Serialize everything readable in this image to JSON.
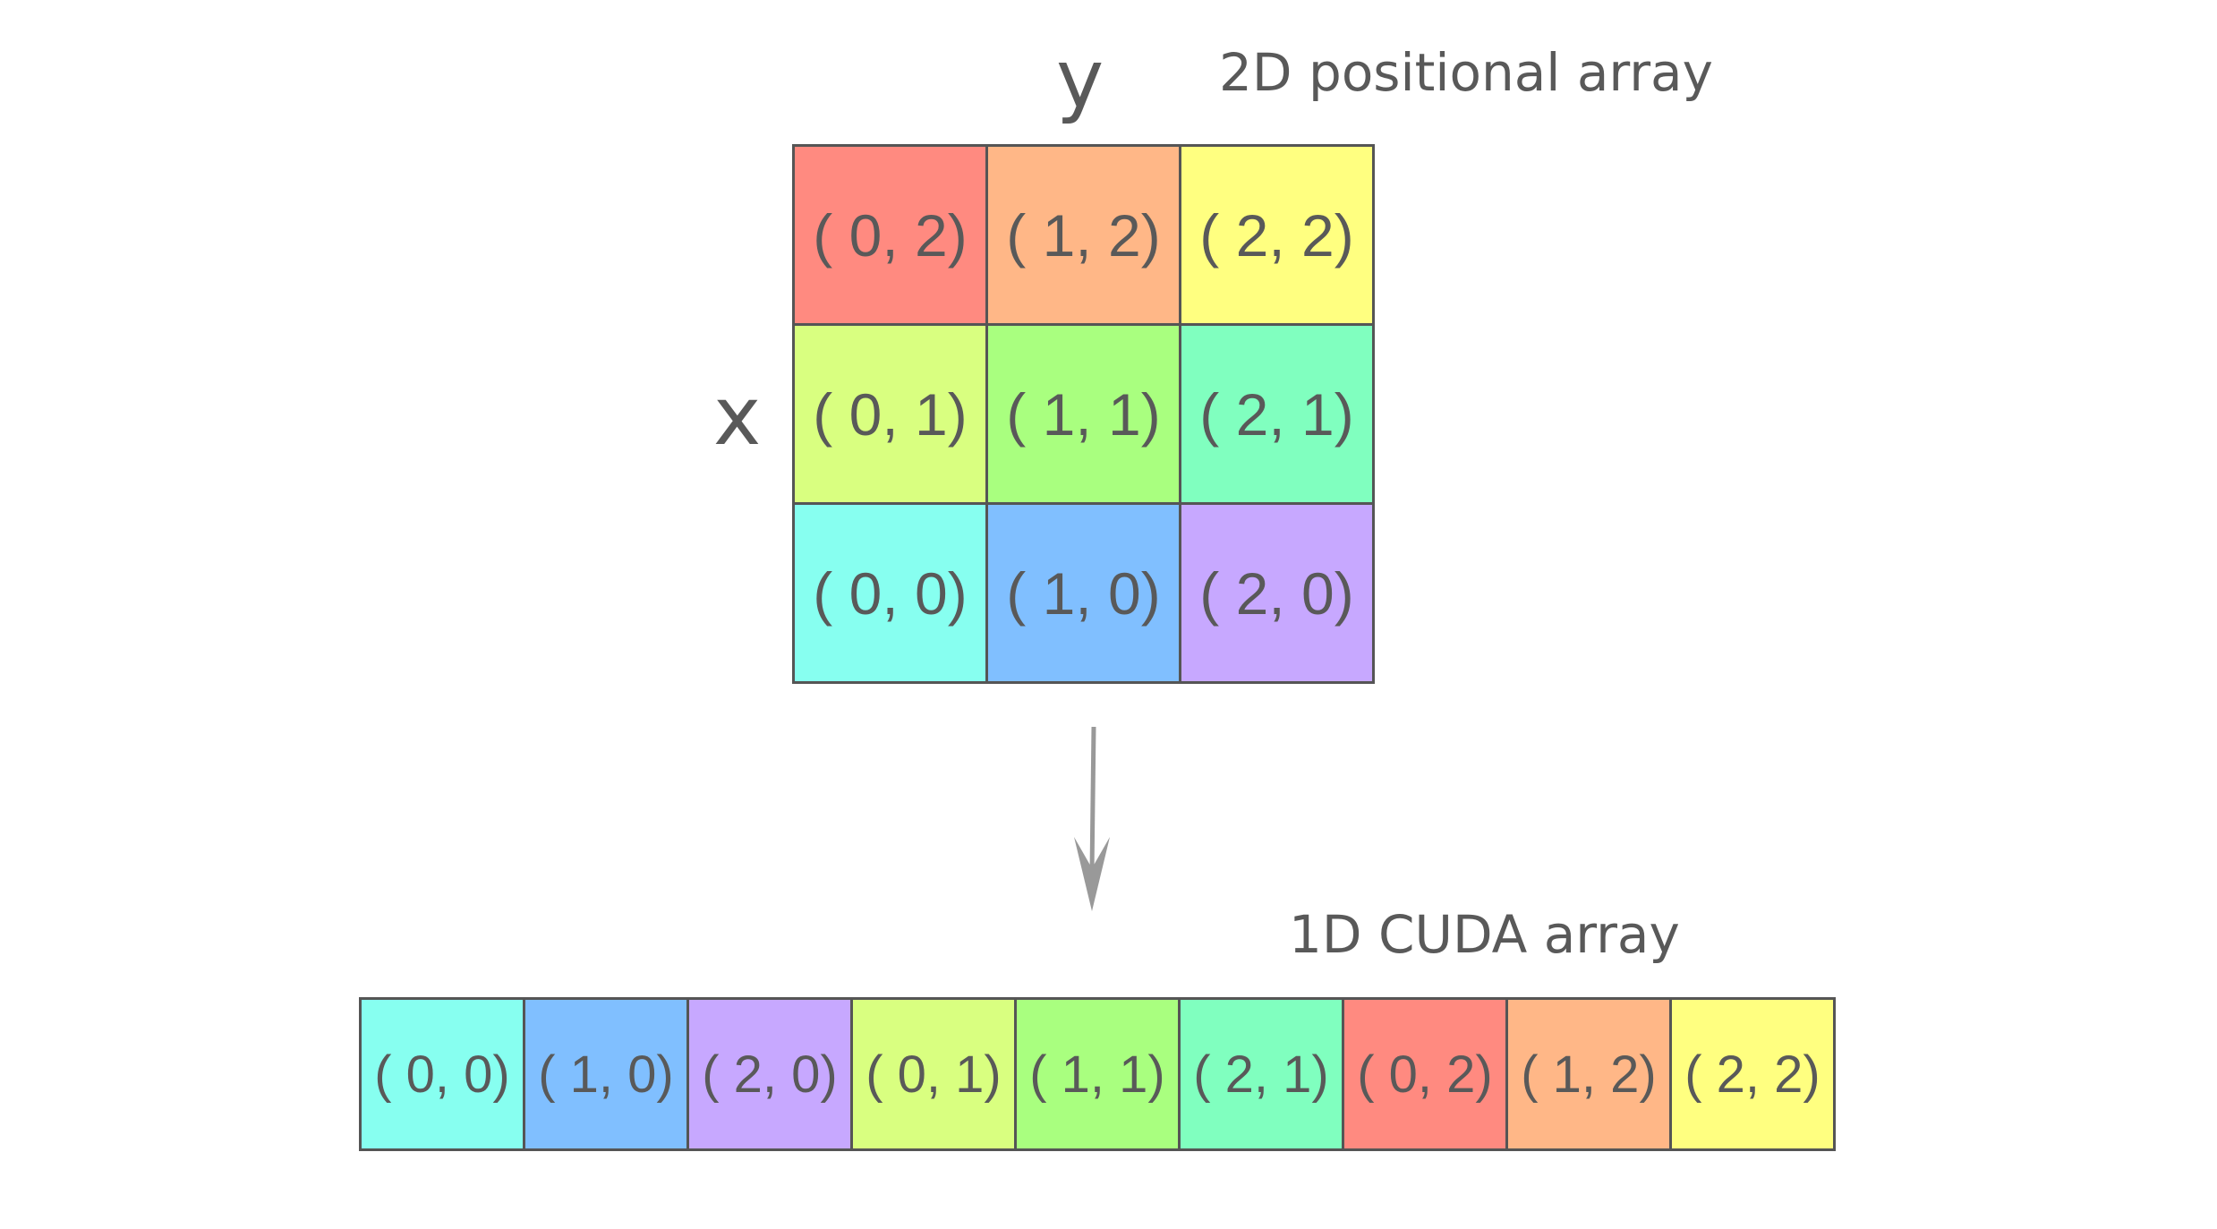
{
  "labels": {
    "axis_y": "y",
    "axis_x": "x",
    "title_2d": "2D positional array",
    "title_1d": "1D CUDA array"
  },
  "grid_2d": [
    [
      {
        "text": "( 0, 2)",
        "color": "#ff8a80"
      },
      {
        "text": "( 1, 2)",
        "color": "#ffb787"
      },
      {
        "text": "( 2, 2)",
        "color": "#ffff80"
      }
    ],
    [
      {
        "text": "( 0, 1)",
        "color": "#d9ff80"
      },
      {
        "text": "( 1, 1)",
        "color": "#a9ff7f"
      },
      {
        "text": "( 2, 1)",
        "color": "#80ffbf"
      }
    ],
    [
      {
        "text": "( 0, 0)",
        "color": "#87fff0"
      },
      {
        "text": "( 1, 0)",
        "color": "#80bfff"
      },
      {
        "text": "( 2, 0)",
        "color": "#c7a8ff"
      }
    ]
  ],
  "array_1d": [
    {
      "text": "( 0, 0)",
      "color": "#87fff0"
    },
    {
      "text": "( 1, 0)",
      "color": "#80bfff"
    },
    {
      "text": "( 2, 0)",
      "color": "#c7a8ff"
    },
    {
      "text": "( 0, 1)",
      "color": "#d9ff80"
    },
    {
      "text": "( 1, 1)",
      "color": "#a9ff7f"
    },
    {
      "text": "( 2, 1)",
      "color": "#80ffbf"
    },
    {
      "text": "( 0, 2)",
      "color": "#ff8a80"
    },
    {
      "text": "( 1, 2)",
      "color": "#ffb787"
    },
    {
      "text": "( 2, 2)",
      "color": "#ffff80"
    }
  ],
  "colors": {
    "text": "#595959",
    "border": "#555555",
    "arrow": "#999999"
  }
}
